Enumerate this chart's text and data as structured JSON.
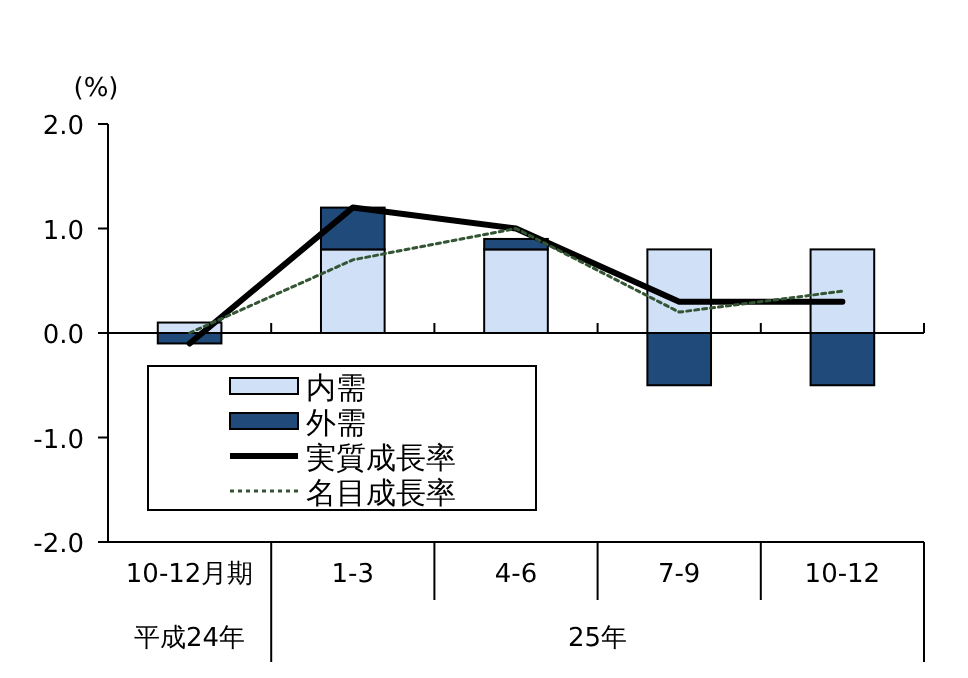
{
  "chart_data": {
    "type": "bar",
    "stacked": true,
    "ylabel": "(%)",
    "categories": [
      "10-12月期",
      "1-3",
      "4-6",
      "7-9",
      "10-12"
    ],
    "series": [
      {
        "name": "内需",
        "color": "#cfe0f7",
        "values": [
          0.1,
          0.8,
          0.8,
          0.8,
          0.8
        ]
      },
      {
        "name": "外需",
        "color": "#1f4a7a",
        "values": [
          -0.1,
          0.4,
          0.1,
          -0.5,
          -0.5
        ]
      },
      {
        "name": "実質成長率",
        "type": "line",
        "color": "#000000",
        "line_style": "solid",
        "values": [
          -0.1,
          1.2,
          1.0,
          0.3,
          0.3
        ]
      },
      {
        "name": "名目成長率",
        "type": "line",
        "color": "#335533",
        "line_style": "dotted",
        "values": [
          0.0,
          0.7,
          1.0,
          0.2,
          0.4
        ]
      }
    ],
    "ylim": [
      -2,
      2
    ],
    "yticks": [
      {
        "value": 2,
        "label": "2.0"
      },
      {
        "value": 1,
        "label": "1.0"
      },
      {
        "value": 0,
        "label": "0.0"
      },
      {
        "value": -1,
        "label": "-1.0"
      },
      {
        "value": -2,
        "label": "-2.0"
      }
    ],
    "legend": "bottom left",
    "annotations": [
      "平成24年",
      "25年"
    ]
  }
}
